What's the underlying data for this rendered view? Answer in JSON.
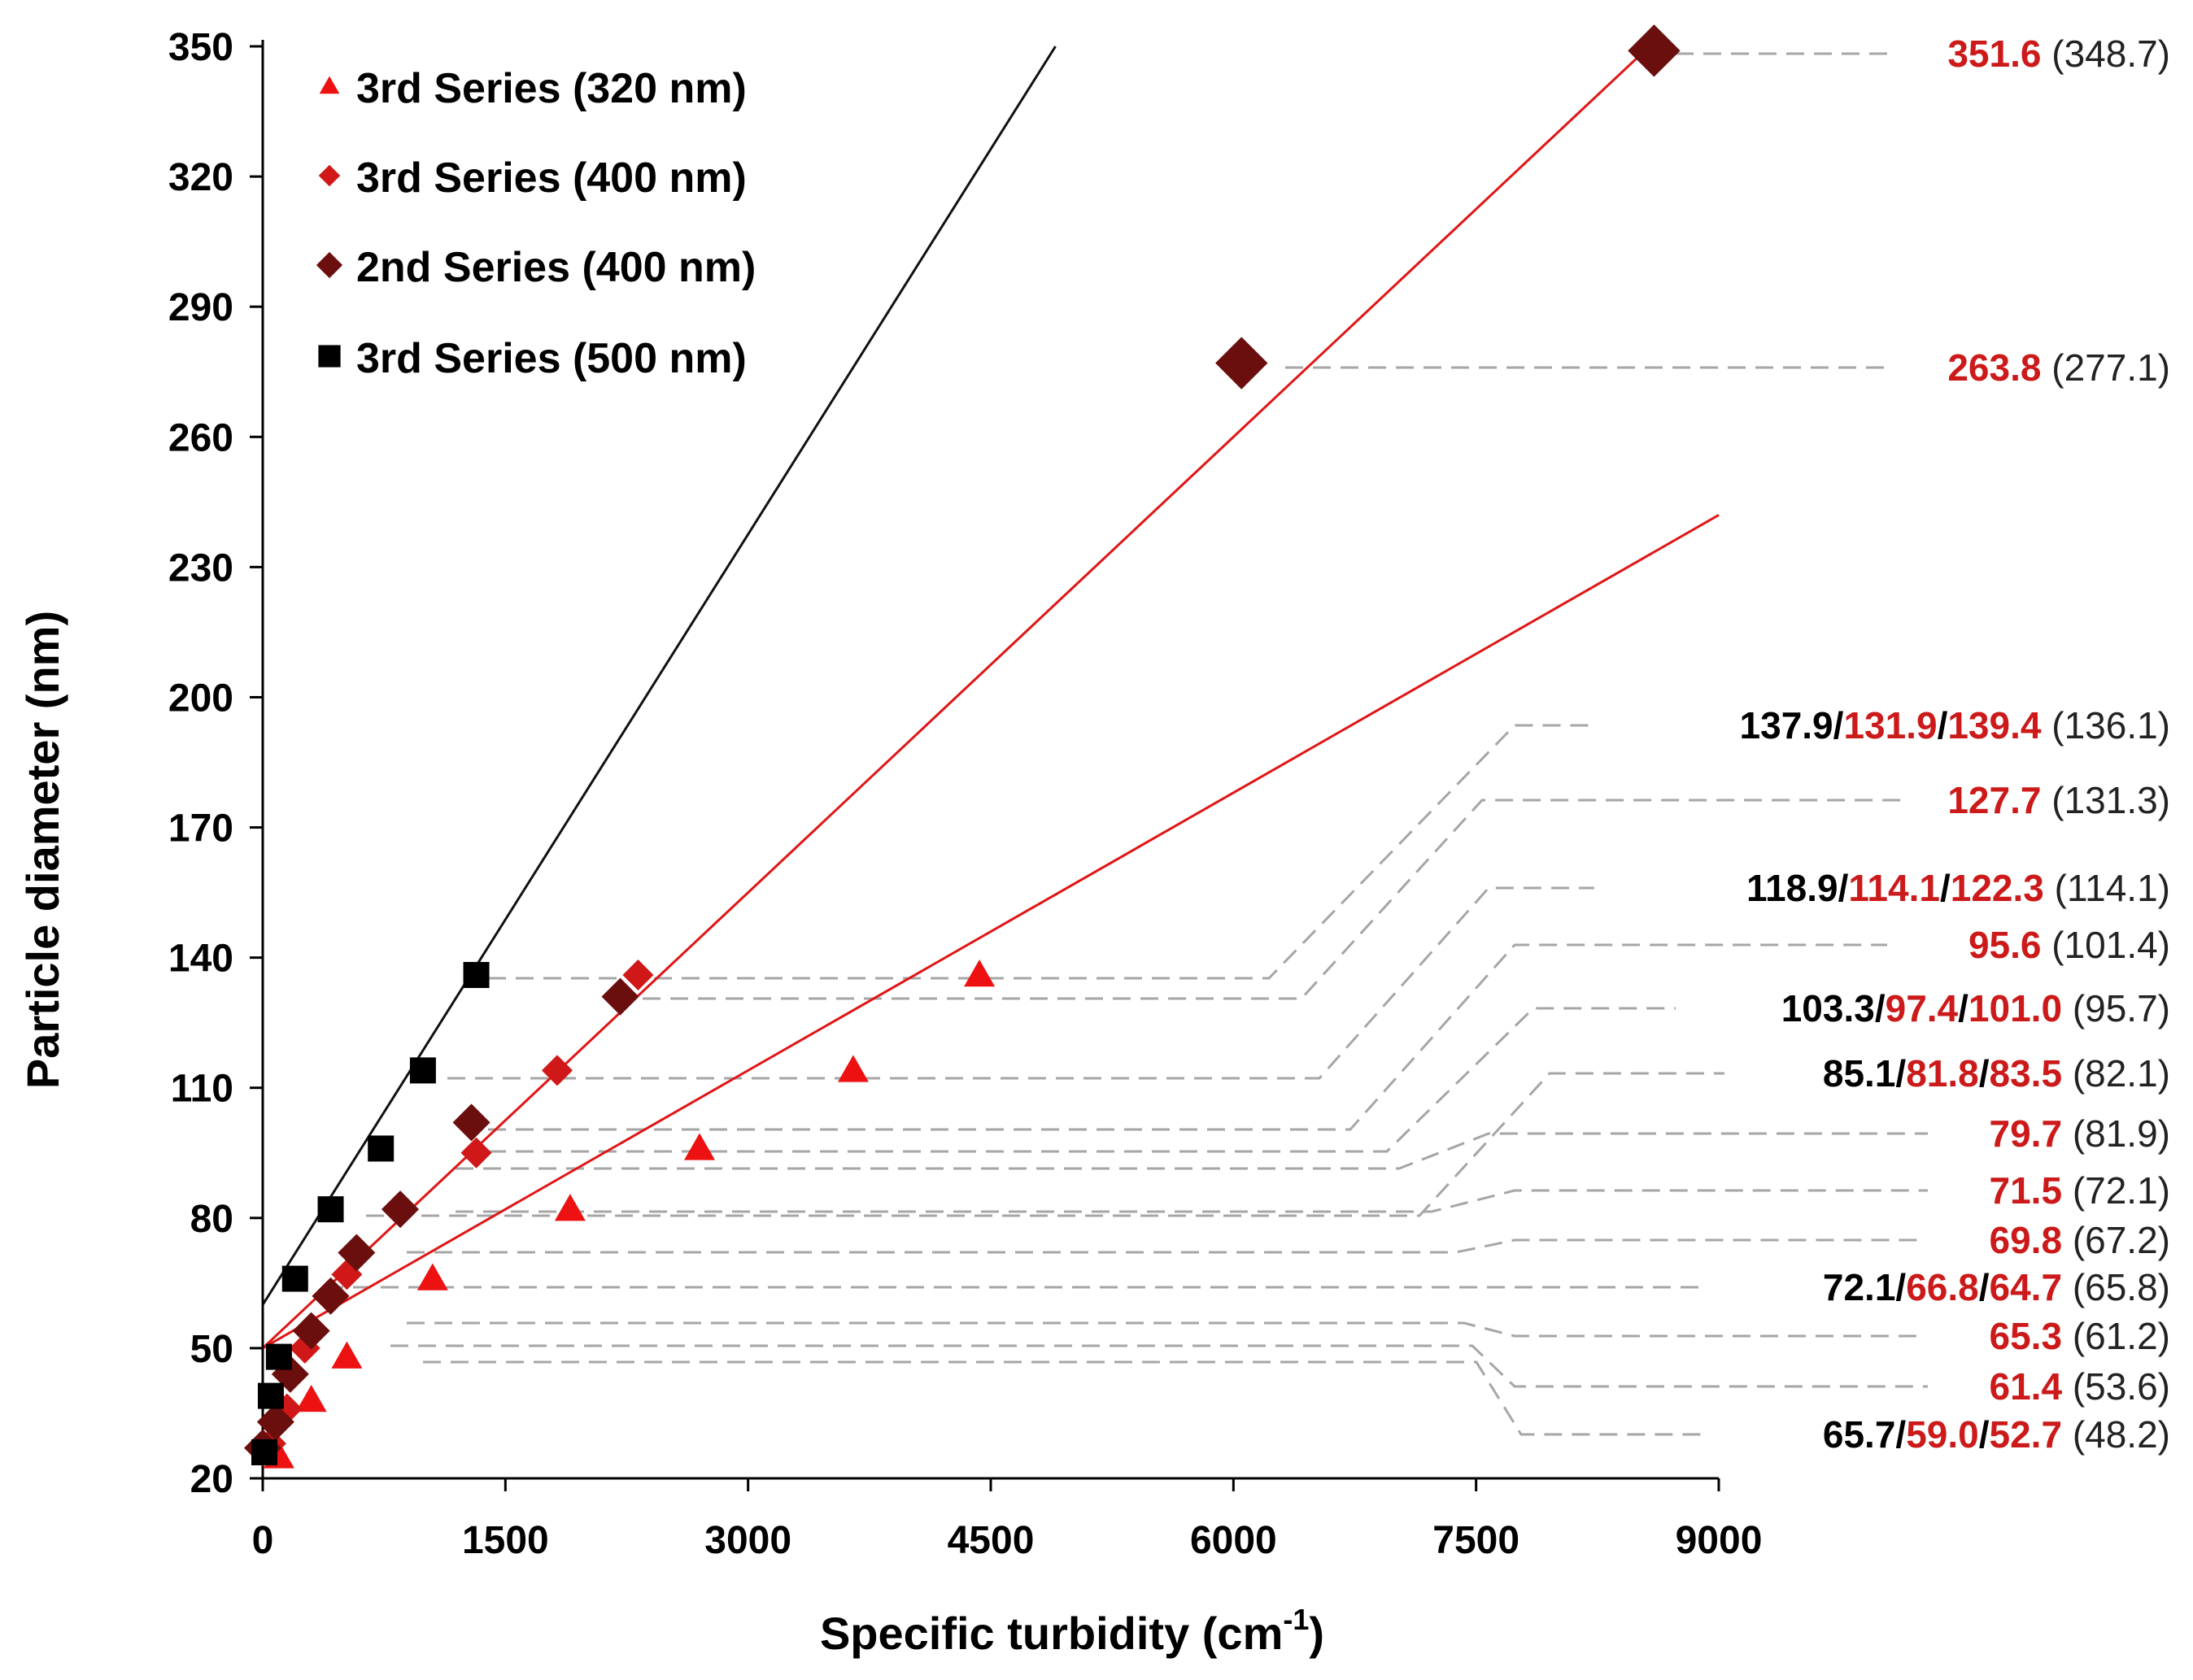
{
  "chart_data": {
    "type": "scatter",
    "xlabel": "Specific turbidity (cm",
    "xlabel_sup": "-1",
    "xlabel_tail": ")",
    "ylabel": "Particle diameter (nm)",
    "xlim": [
      0,
      9000
    ],
    "ylim": [
      20,
      350
    ],
    "x_ticks": [
      0,
      1500,
      3000,
      4500,
      6000,
      7500,
      9000
    ],
    "y_ticks": [
      20,
      50,
      80,
      110,
      140,
      170,
      200,
      230,
      260,
      290,
      320,
      350
    ],
    "series": [
      {
        "name": "3rd Series (320 nm)",
        "marker": "triangle",
        "color": "#ee1111",
        "points": [
          [
            100,
            25
          ],
          [
            300,
            38
          ],
          [
            520,
            48
          ],
          [
            1050,
            66
          ],
          [
            1900,
            82
          ],
          [
            2700,
            96
          ],
          [
            3650,
            114
          ],
          [
            4430,
            136
          ]
        ],
        "fit_line": [
          [
            0,
            50
          ],
          [
            9000,
            242
          ]
        ]
      },
      {
        "name": "3rd Series (400 nm)",
        "marker": "diamond-small",
        "color": "#d01818",
        "points": [
          [
            50,
            28
          ],
          [
            150,
            36
          ],
          [
            260,
            50
          ],
          [
            400,
            62
          ],
          [
            520,
            67
          ],
          [
            830,
            82
          ],
          [
            1320,
            95
          ],
          [
            1820,
            114
          ],
          [
            2320,
            136
          ]
        ],
        "fit_line": [
          [
            0,
            50
          ],
          [
            8600,
            351
          ]
        ]
      },
      {
        "name": "2nd Series (400 nm)",
        "marker": "diamond",
        "color": "#6b0e0e",
        "points": [
          [
            0,
            27
          ],
          [
            80,
            33
          ],
          [
            170,
            44
          ],
          [
            300,
            54
          ],
          [
            420,
            62
          ],
          [
            580,
            72
          ],
          [
            850,
            82
          ],
          [
            1290,
            102
          ],
          [
            2210,
            131
          ],
          [
            6050,
            277
          ],
          [
            8600,
            349
          ]
        ],
        "fit_line": null
      },
      {
        "name": "3rd Series (500 nm)",
        "marker": "square",
        "color": "#000000",
        "points": [
          [
            10,
            26
          ],
          [
            50,
            39
          ],
          [
            100,
            48
          ],
          [
            200,
            66
          ],
          [
            420,
            82
          ],
          [
            730,
            96
          ],
          [
            990,
            114
          ],
          [
            1320,
            136
          ]
        ],
        "fit_line": [
          [
            0,
            60
          ],
          [
            4900,
            350
          ]
        ]
      }
    ],
    "annotations": [
      {
        "parts": [
          {
            "text": "351.6",
            "color": "red"
          }
        ],
        "paren": "(348.7)"
      },
      {
        "parts": [
          {
            "text": "263.8",
            "color": "red"
          }
        ],
        "paren": "(277.1)"
      },
      {
        "parts": [
          {
            "text": "137.9",
            "color": "black"
          },
          {
            "text": "/",
            "color": "black"
          },
          {
            "text": "131.9",
            "color": "red"
          },
          {
            "text": "/",
            "color": "black"
          },
          {
            "text": "139.4",
            "color": "red"
          }
        ],
        "paren": "(136.1)"
      },
      {
        "parts": [
          {
            "text": "127.7",
            "color": "red"
          }
        ],
        "paren": "(131.3)"
      },
      {
        "parts": [
          {
            "text": "118.9",
            "color": "black"
          },
          {
            "text": "/",
            "color": "black"
          },
          {
            "text": "114.1",
            "color": "red"
          },
          {
            "text": "/",
            "color": "black"
          },
          {
            "text": "122.3",
            "color": "red"
          }
        ],
        "paren": "(114.1)"
      },
      {
        "parts": [
          {
            "text": "95.6",
            "color": "red"
          }
        ],
        "paren": "(101.4)"
      },
      {
        "parts": [
          {
            "text": "103.3",
            "color": "black"
          },
          {
            "text": "/",
            "color": "black"
          },
          {
            "text": "97.4",
            "color": "red"
          },
          {
            "text": "/",
            "color": "black"
          },
          {
            "text": "101.0",
            "color": "red"
          }
        ],
        "paren": "(95.7)"
      },
      {
        "parts": [
          {
            "text": "85.1",
            "color": "black"
          },
          {
            "text": "/",
            "color": "black"
          },
          {
            "text": "81.8",
            "color": "red"
          },
          {
            "text": "/",
            "color": "black"
          },
          {
            "text": "83.5",
            "color": "red"
          }
        ],
        "paren": "(82.1)"
      },
      {
        "parts": [
          {
            "text": "79.7",
            "color": "red"
          }
        ],
        "paren": "(81.9)"
      },
      {
        "parts": [
          {
            "text": "71.5",
            "color": "red"
          }
        ],
        "paren": "(72.1)"
      },
      {
        "parts": [
          {
            "text": "69.8",
            "color": "red"
          }
        ],
        "paren": "(67.2)"
      },
      {
        "parts": [
          {
            "text": "72.1",
            "color": "black"
          },
          {
            "text": "/",
            "color": "black"
          },
          {
            "text": "66.8",
            "color": "red"
          },
          {
            "text": "/",
            "color": "black"
          },
          {
            "text": "64.7",
            "color": "red"
          }
        ],
        "paren": "(65.8)"
      },
      {
        "parts": [
          {
            "text": "65.3",
            "color": "red"
          }
        ],
        "paren": "(61.2)"
      },
      {
        "parts": [
          {
            "text": "61.4",
            "color": "red"
          }
        ],
        "paren": "(53.6)"
      },
      {
        "parts": [
          {
            "text": "65.7",
            "color": "black"
          },
          {
            "text": "/",
            "color": "black"
          },
          {
            "text": "59.0",
            "color": "red"
          },
          {
            "text": "/",
            "color": "black"
          },
          {
            "text": "52.7",
            "color": "red"
          }
        ],
        "paren": "(48.2)"
      }
    ],
    "legend_position": "top-left"
  },
  "colors": {
    "red_text": "#cc1a1a",
    "paren_text": "#222222",
    "guide": "#a6a6a6"
  }
}
